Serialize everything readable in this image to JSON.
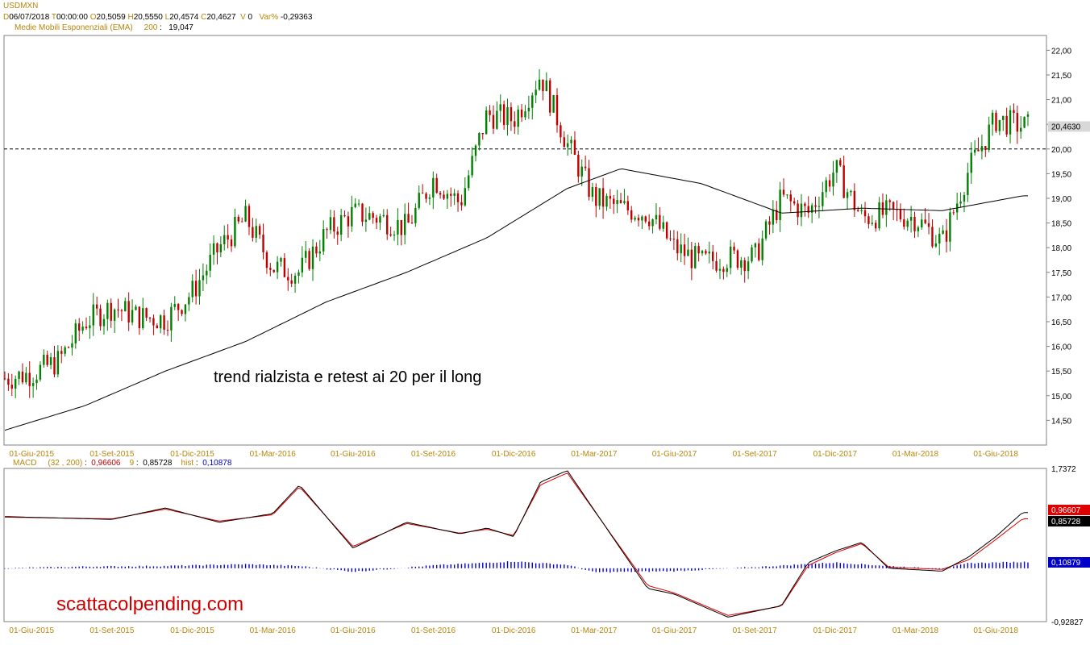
{
  "header": {
    "symbol": "USDMXN",
    "date_label": "D",
    "date": "06/07/2018",
    "time_label": "T",
    "time": "00:00:00",
    "open_label": "O",
    "open": "20,5059",
    "high_label": "H",
    "high": "20,5550",
    "low_label": "L",
    "low": "20,4574",
    "close_label": "C",
    "close": "20,4627",
    "volume_label": "V",
    "volume": "0",
    "var_label": "Var%",
    "var": "-0,29363",
    "ema_label": "Medie Mobili Esponenziali (EMA)",
    "ema_period": "200",
    "ema_value": "19,047"
  },
  "macd_header": {
    "label": "MACD",
    "params": "(32 , 200)",
    "macd_value": "0,96606",
    "signal_period": "9",
    "signal_value": "0,85728",
    "hist_label": "hist",
    "hist_value": "0,10878"
  },
  "annotations": {
    "main_text": "trend rialzista e retest ai 20 per il long",
    "watermark": "scattacolpending.com"
  },
  "colors": {
    "up_candle": "#008000",
    "down_candle": "#c00000",
    "ema": "#000000",
    "macd_line": "#000000",
    "signal_line": "#e00000",
    "histogram": "#0000c8",
    "axis_label": "#b8860b"
  },
  "chart_data": [
    {
      "type": "candlestick",
      "title": "USDMXN",
      "x_ticks": [
        "01-Giu-2015",
        "01-Set-2015",
        "01-Dic-2015",
        "01-Mar-2016",
        "01-Giu-2016",
        "01-Set-2016",
        "01-Dic-2016",
        "01-Mar-2017",
        "01-Giu-2017",
        "01-Set-2017",
        "01-Dic-2017",
        "01-Mar-2018",
        "01-Giu-2018"
      ],
      "y_ticks": [
        "14,50",
        "15,00",
        "15,50",
        "16,00",
        "16,50",
        "17,00",
        "17,50",
        "18,00",
        "18,50",
        "19,00",
        "19,50",
        "20,00",
        "20,50",
        "21,00",
        "21,50",
        "22,00"
      ],
      "ylim": [
        14.0,
        22.3
      ],
      "grid": false,
      "last_price_label": "20,4630",
      "last_price": 20.463,
      "horizontal_line": 20.0,
      "price_path": [
        [
          "2015-05",
          15.35
        ],
        [
          "2015-06",
          15.45
        ],
        [
          "2015-07",
          15.7
        ],
        [
          "2015-08",
          16.5
        ],
        [
          "2015-09",
          16.8
        ],
        [
          "2015-10",
          16.6
        ],
        [
          "2015-11",
          16.55
        ],
        [
          "2015-12",
          17.1
        ],
        [
          "2016-01",
          18.0
        ],
        [
          "2016-02",
          18.6
        ],
        [
          "2016-03",
          17.6
        ],
        [
          "2016-04",
          17.5
        ],
        [
          "2016-05",
          18.3
        ],
        [
          "2016-06",
          18.7
        ],
        [
          "2016-07",
          18.6
        ],
        [
          "2016-08",
          18.4
        ],
        [
          "2016-09",
          19.4
        ],
        [
          "2016-10",
          18.9
        ],
        [
          "2016-11",
          20.7
        ],
        [
          "2016-12",
          20.6
        ],
        [
          "2017-01",
          21.5
        ],
        [
          "2017-02",
          20.1
        ],
        [
          "2017-03",
          19.0
        ],
        [
          "2017-04",
          18.8
        ],
        [
          "2017-05",
          18.7
        ],
        [
          "2017-06",
          18.0
        ],
        [
          "2017-07",
          17.7
        ],
        [
          "2017-08",
          17.8
        ],
        [
          "2017-09",
          17.8
        ],
        [
          "2017-10",
          19.0
        ],
        [
          "2017-11",
          18.7
        ],
        [
          "2017-12",
          19.6
        ],
        [
          "2018-01",
          18.6
        ],
        [
          "2018-02",
          18.7
        ],
        [
          "2018-03",
          18.6
        ],
        [
          "2018-04",
          18.1
        ],
        [
          "2018-05",
          19.6
        ],
        [
          "2018-06",
          20.6
        ],
        [
          "2018-07",
          20.46
        ]
      ],
      "ema_path": [
        [
          "2015-05",
          14.3
        ],
        [
          "2015-08",
          14.8
        ],
        [
          "2015-11",
          15.5
        ],
        [
          "2016-02",
          16.1
        ],
        [
          "2016-05",
          16.9
        ],
        [
          "2016-08",
          17.5
        ],
        [
          "2016-11",
          18.2
        ],
        [
          "2017-02",
          19.2
        ],
        [
          "2017-04",
          19.6
        ],
        [
          "2017-07",
          19.3
        ],
        [
          "2017-10",
          18.7
        ],
        [
          "2018-01",
          18.8
        ],
        [
          "2018-04",
          18.75
        ],
        [
          "2018-07",
          19.05
        ]
      ]
    },
    {
      "type": "line",
      "title": "MACD",
      "y_ticks": [
        "1,7372",
        "-0,92827"
      ],
      "ylim": [
        -0.92827,
        1.7372
      ],
      "last_labels": {
        "macd": "0,96607",
        "signal": "0,85728",
        "hist": "0,10879"
      },
      "series": [
        {
          "name": "MACD",
          "values": [
            [
              "2015-05",
              0.9
            ],
            [
              "2015-09",
              0.85
            ],
            [
              "2015-11",
              1.05
            ],
            [
              "2016-01",
              0.8
            ],
            [
              "2016-03",
              0.95
            ],
            [
              "2016-04",
              1.45
            ],
            [
              "2016-06",
              0.35
            ],
            [
              "2016-08",
              0.8
            ],
            [
              "2016-10",
              0.6
            ],
            [
              "2016-11",
              0.7
            ],
            [
              "2016-12",
              0.55
            ],
            [
              "2017-01",
              1.5
            ],
            [
              "2017-02",
              1.7
            ],
            [
              "2017-05",
              -0.35
            ],
            [
              "2017-06",
              -0.45
            ],
            [
              "2017-08",
              -0.85
            ],
            [
              "2017-10",
              -0.65
            ],
            [
              "2017-11",
              0.1
            ],
            [
              "2017-12",
              0.3
            ],
            [
              "2018-01",
              0.45
            ],
            [
              "2018-02",
              0.0
            ],
            [
              "2018-04",
              -0.05
            ],
            [
              "2018-05",
              0.2
            ],
            [
              "2018-06",
              0.55
            ],
            [
              "2018-07",
              0.97
            ]
          ]
        },
        {
          "name": "Signal",
          "values": [
            [
              "2015-05",
              0.89
            ],
            [
              "2015-09",
              0.86
            ],
            [
              "2015-11",
              1.03
            ],
            [
              "2016-01",
              0.82
            ],
            [
              "2016-03",
              0.93
            ],
            [
              "2016-04",
              1.42
            ],
            [
              "2016-06",
              0.38
            ],
            [
              "2016-08",
              0.78
            ],
            [
              "2016-10",
              0.61
            ],
            [
              "2016-11",
              0.68
            ],
            [
              "2016-12",
              0.57
            ],
            [
              "2017-01",
              1.45
            ],
            [
              "2017-02",
              1.66
            ],
            [
              "2017-05",
              -0.3
            ],
            [
              "2017-06",
              -0.43
            ],
            [
              "2017-08",
              -0.82
            ],
            [
              "2017-10",
              -0.66
            ],
            [
              "2017-11",
              0.05
            ],
            [
              "2017-12",
              0.27
            ],
            [
              "2018-01",
              0.43
            ],
            [
              "2018-02",
              0.02
            ],
            [
              "2018-04",
              -0.02
            ],
            [
              "2018-05",
              0.15
            ],
            [
              "2018-06",
              0.5
            ],
            [
              "2018-07",
              0.86
            ]
          ]
        },
        {
          "name": "hist",
          "values": [
            [
              "2015-05",
              0.0
            ],
            [
              "2015-08",
              0.03
            ],
            [
              "2015-11",
              0.04
            ],
            [
              "2016-02",
              0.07
            ],
            [
              "2016-04",
              0.04
            ],
            [
              "2016-06",
              -0.06
            ],
            [
              "2016-09",
              0.05
            ],
            [
              "2016-12",
              0.12
            ],
            [
              "2017-02",
              0.06
            ],
            [
              "2017-03",
              -0.07
            ],
            [
              "2017-06",
              -0.05
            ],
            [
              "2017-09",
              0.02
            ],
            [
              "2017-12",
              0.1
            ],
            [
              "2018-02",
              0.04
            ],
            [
              "2018-04",
              -0.02
            ],
            [
              "2018-05",
              0.09
            ],
            [
              "2018-07",
              0.11
            ]
          ]
        }
      ]
    }
  ]
}
